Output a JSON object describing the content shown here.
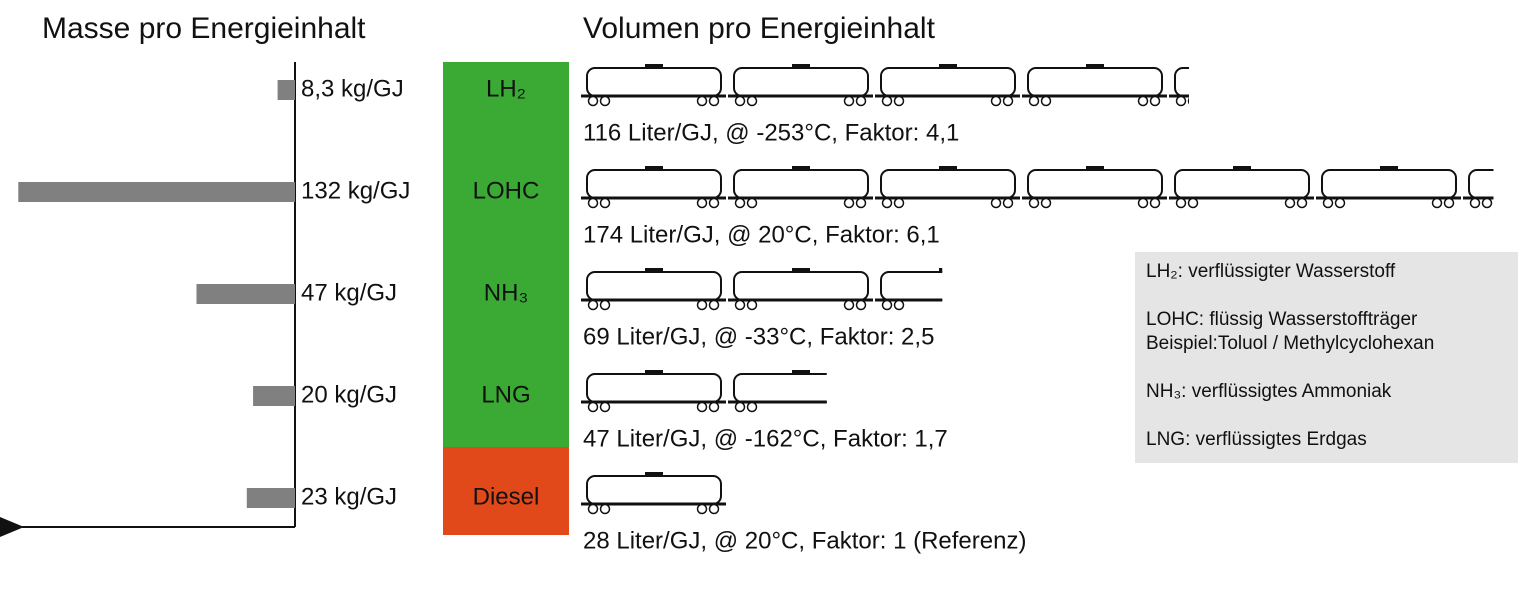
{
  "chart_data": [
    {
      "type": "hbar",
      "title": "Masse pro Energieinhalt",
      "categories": [
        "LH₂",
        "LOHC",
        "NH₃",
        "LNG",
        "Diesel"
      ],
      "category_colors": [
        "#3aaa35",
        "#3aaa35",
        "#3aaa35",
        "#3aaa35",
        "#e2491a"
      ],
      "values": [
        8.3,
        132,
        47,
        20,
        23
      ],
      "value_labels": [
        "8,3 kg/GJ",
        "132 kg/GJ",
        "47 kg/GJ",
        "20 kg/GJ",
        "23 kg/GJ"
      ],
      "color": "#808080",
      "xlim": [
        0,
        135
      ]
    },
    {
      "type": "wagons",
      "title": "Volumen pro Energieinhalt",
      "values": [
        116,
        174,
        69,
        47,
        28
      ],
      "value_labels": [
        "116 Liter/GJ, @ -253°C, Faktor: 4,1",
        "174 Liter/GJ, @ 20°C, Faktor: 6,1",
        "69 Liter/GJ, @ -33°C, Faktor: 2,5",
        "47 Liter/GJ, @ -162°C, Faktor: 1,7",
        "28 Liter/GJ, @ 20°C, Faktor: 1 (Referenz)"
      ],
      "notes": [
        "LH₂: verflüssigter Wasserstoff",
        "LOHC: flüssig Wasserstoffträger",
        "Beispiel:Toluol / Methylcyclohexan",
        "NH₃: verflüssigtes Ammoniak",
        "LNG: verflüssigtes Erdgas"
      ]
    }
  ]
}
